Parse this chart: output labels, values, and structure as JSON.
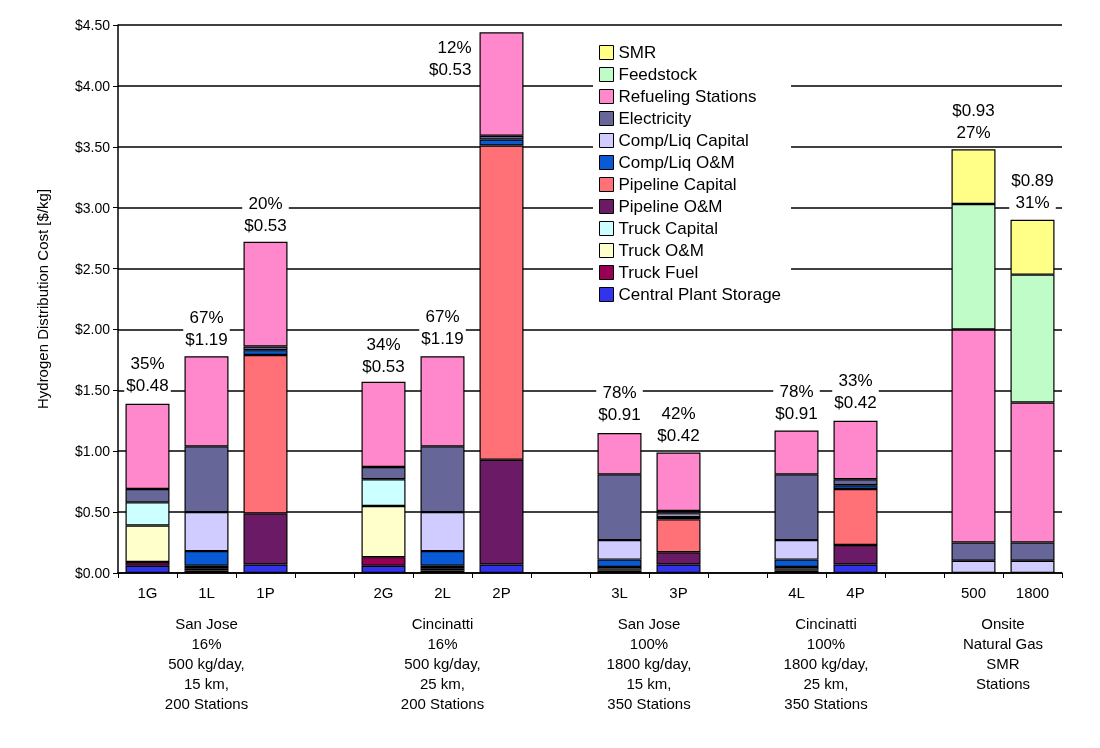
{
  "chart_data": {
    "type": "bar",
    "stacked": true,
    "ylabel": "Hydrogen Distribution Cost [$/kg]",
    "categories": [
      "1G",
      "1L",
      "1P",
      null,
      "2G",
      "2L",
      "2P",
      null,
      "3L",
      "3P",
      null,
      "4L",
      "4P",
      null,
      "500",
      "1800"
    ],
    "ylim": [
      0,
      4.5
    ],
    "yticks": [
      {
        "value": 0,
        "label": "$0.00"
      },
      {
        "value": 0.5,
        "label": "$0.50"
      },
      {
        "value": 1,
        "label": "$1.00"
      },
      {
        "value": 1.5,
        "label": "$1.50"
      },
      {
        "value": 2,
        "label": "$2.00"
      },
      {
        "value": 2.5,
        "label": "$2.50"
      },
      {
        "value": 3,
        "label": "$3.00"
      },
      {
        "value": 3.5,
        "label": "$3.50"
      },
      {
        "value": 4,
        "label": "$4.00"
      },
      {
        "value": 4.5,
        "label": "$4.50"
      }
    ],
    "grid": "y",
    "legend": "top",
    "series": [
      {
        "name": "Central Plant Storage",
        "color": "#3333ee",
        "values": [
          0.06,
          0.02,
          0.07,
          null,
          0.06,
          0.02,
          0.07,
          null,
          0.02,
          0.07,
          null,
          0.02,
          0.07,
          null,
          null,
          null
        ]
      },
      {
        "name": "Truck Fuel",
        "color": "#990055",
        "values": [
          0.03,
          0.02,
          null,
          null,
          0.07,
          0.02,
          null,
          null,
          0.01,
          null,
          null,
          0.01,
          null,
          null,
          null,
          null
        ]
      },
      {
        "name": "Truck O&M",
        "color": "#ffffcc",
        "values": [
          0.3,
          0.02,
          null,
          null,
          0.42,
          0.02,
          null,
          null,
          0.02,
          null,
          null,
          0.02,
          null,
          null,
          null,
          null
        ]
      },
      {
        "name": "Truck Capital",
        "color": "#ccffff",
        "values": [
          0.19,
          null,
          null,
          null,
          0.22,
          null,
          null,
          null,
          null,
          null,
          null,
          null,
          null,
          null,
          null,
          null
        ]
      },
      {
        "name": "Pipeline O&M",
        "color": "#6b1a66",
        "values": [
          null,
          null,
          0.42,
          null,
          null,
          null,
          0.86,
          null,
          null,
          0.1,
          null,
          null,
          0.16,
          null,
          null,
          null
        ]
      },
      {
        "name": "Pipeline Capital",
        "color": "#ff7077",
        "values": [
          null,
          null,
          1.3,
          null,
          null,
          null,
          2.58,
          null,
          null,
          0.27,
          null,
          null,
          0.46,
          null,
          null,
          null
        ]
      },
      {
        "name": "Comp/Liq O&M",
        "color": "#0a5ad6",
        "values": [
          null,
          0.12,
          0.04,
          null,
          null,
          0.12,
          0.05,
          null,
          0.06,
          0.02,
          null,
          0.06,
          0.03,
          null,
          null,
          null
        ]
      },
      {
        "name": "Comp/Liq Capital",
        "color": "#d0ccff",
        "values": [
          null,
          0.32,
          null,
          null,
          null,
          0.32,
          null,
          null,
          0.16,
          0.03,
          null,
          0.16,
          null,
          null,
          0.1,
          0.1
        ]
      },
      {
        "name": "Electricity",
        "color": "#666699",
        "values": [
          0.11,
          0.54,
          0.03,
          null,
          0.1,
          0.54,
          0.03,
          null,
          0.54,
          0.02,
          null,
          0.54,
          0.05,
          null,
          0.15,
          0.15
        ]
      },
      {
        "name": "Refueling Stations",
        "color": "#ff88cc",
        "values": [
          0.7,
          0.74,
          0.86,
          null,
          0.7,
          0.74,
          0.85,
          null,
          0.34,
          0.48,
          null,
          0.36,
          0.48,
          null,
          1.75,
          1.15
        ]
      },
      {
        "name": "Feedstock",
        "color": "#c0fcc8",
        "values": [
          null,
          null,
          null,
          null,
          null,
          null,
          null,
          null,
          null,
          null,
          null,
          null,
          null,
          null,
          1.03,
          1.05
        ]
      },
      {
        "name": "SMR",
        "color": "#ffff88",
        "values": [
          null,
          null,
          null,
          null,
          null,
          null,
          null,
          null,
          null,
          null,
          null,
          null,
          null,
          null,
          0.45,
          0.45
        ]
      }
    ],
    "annotations": [
      {
        "text": "35%\n$0.48",
        "x": "1G",
        "y": 1.4
      },
      {
        "text": "67%\n$1.19",
        "x": "1L",
        "y": 1.78
      },
      {
        "text": "20%\n$0.53",
        "x": "1P",
        "y": 2.71
      },
      {
        "text": "34%\n$0.53",
        "x": "2G",
        "y": 1.56
      },
      {
        "text": "67%\n$1.19",
        "x": "2L",
        "y": 1.79
      },
      {
        "text": "12%\n$0.53",
        "x": "2P",
        "y": 4.44
      },
      {
        "text": "78%\n$0.91",
        "x": "3L",
        "y": 1.16
      },
      {
        "text": "42%\n$0.42",
        "x": "3P",
        "y": 0.99
      },
      {
        "text": "78%\n$0.91",
        "x": "4L",
        "y": 1.17
      },
      {
        "text": "33%\n$0.42",
        "x": "4P",
        "y": 1.26
      },
      {
        "text": "$0.93\n27%",
        "x": "500",
        "y": 3.48
      },
      {
        "text": "$0.89\n31%",
        "x": "1800",
        "y": 2.9
      },
      "San Jose\n16%\n500 kg/day,\n15 km,\n200 Stations",
      "Cincinatti\n16%\n500 kg/day,\n25 km,\n200 Stations",
      "San Jose\n100%\n1800 kg/day,\n15 km,\n350 Stations",
      "Cincinatti\n100%\n1800 kg/day,\n25 km,\n350 Stations",
      "Onsite\nNatural Gas\nSMR\nStations"
    ]
  }
}
